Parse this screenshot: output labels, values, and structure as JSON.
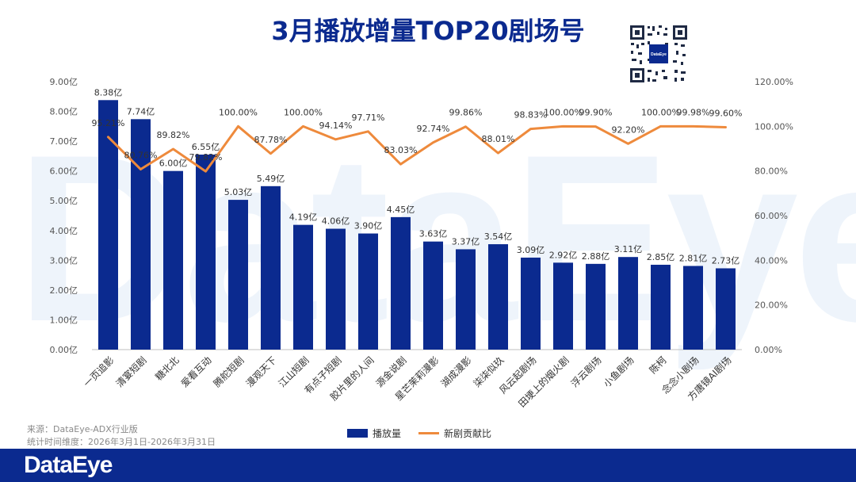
{
  "title": "3月播放增量TOP20剧场号",
  "watermark": "DataEye",
  "brand": "DataEye",
  "qr_brand": "DataEye",
  "source": {
    "line1": "来源：DataEye-ADX行业版",
    "line2": "统计时间维度：2026年3月1日-2026年3月31日"
  },
  "colors": {
    "bar": "#0b2a8f",
    "line": "#ee8a3c",
    "watermark": "#eef4fb"
  },
  "chart_data": {
    "type": "bar",
    "title": "3月播放增量TOP20剧场号",
    "categories": [
      "一页追影",
      "清宴短剧",
      "糖北北",
      "爱看互动",
      "腾舵短剧",
      "漫观天下",
      "江山短剧",
      "有点子短剧",
      "胶片里的人间",
      "源金说剧",
      "星芒茉莉漫影",
      "湖成漫影",
      "柒柒似玖",
      "风云起剧场",
      "田埂上的烟火剧",
      "浮云剧场",
      "小鱼剧场",
      "陈柯",
      "念念小剧场",
      "方唐镜AI剧场"
    ],
    "series": [
      {
        "name": "播放量",
        "type": "bar",
        "axis": "left",
        "values": [
          8.38,
          7.74,
          6.0,
          6.55,
          5.03,
          5.49,
          4.19,
          4.06,
          3.9,
          4.45,
          3.63,
          3.37,
          3.54,
          3.09,
          2.92,
          2.88,
          3.11,
          2.85,
          2.81,
          2.73
        ],
        "labels": [
          "8.38亿",
          "7.74亿",
          "6.00亿",
          "6.55亿",
          "5.03亿",
          "5.49亿",
          "4.19亿",
          "4.06亿",
          "3.90亿",
          "4.45亿",
          "3.63亿",
          "3.37亿",
          "3.54亿",
          "3.09亿",
          "2.92亿",
          "2.88亿",
          "3.11亿",
          "2.85亿",
          "2.81亿",
          "2.73亿"
        ]
      },
      {
        "name": "新剧贡献比",
        "type": "line",
        "axis": "right",
        "values": [
          95.21,
          80.76,
          89.82,
          79.82,
          100.0,
          87.78,
          100.0,
          94.14,
          97.71,
          83.03,
          92.74,
          99.86,
          88.01,
          98.83,
          100.0,
          99.9,
          92.2,
          100.0,
          99.98,
          99.6
        ],
        "labels": [
          "95.21%",
          "80.76%",
          "89.82%",
          "79.82%",
          "100.00%",
          "87.78%",
          "100.00%",
          "94.14%",
          "97.71%",
          "83.03%",
          "92.74%",
          "99.86%",
          "88.01%",
          "98.83%",
          "100.00%",
          "99.90%",
          "92.20%",
          "100.00%",
          "99.98%",
          "99.60%"
        ]
      }
    ],
    "y_left": {
      "ylim": [
        0,
        9
      ],
      "ticks": [
        0,
        1,
        2,
        3,
        4,
        5,
        6,
        7,
        8,
        9
      ],
      "tick_labels": [
        "0.00亿",
        "1.00亿",
        "2.00亿",
        "3.00亿",
        "4.00亿",
        "5.00亿",
        "6.00亿",
        "7.00亿",
        "8.00亿",
        "9.00亿"
      ]
    },
    "y_right": {
      "ylim": [
        0,
        120
      ],
      "ticks": [
        0,
        20,
        40,
        60,
        80,
        100,
        120
      ],
      "tick_labels": [
        "0.00%",
        "20.00%",
        "40.00%",
        "60.00%",
        "80.00%",
        "100.00%",
        "120.00%"
      ]
    },
    "legend": [
      "播放量",
      "新剧贡献比"
    ],
    "legend_position": "bottom-center",
    "grid": false
  }
}
